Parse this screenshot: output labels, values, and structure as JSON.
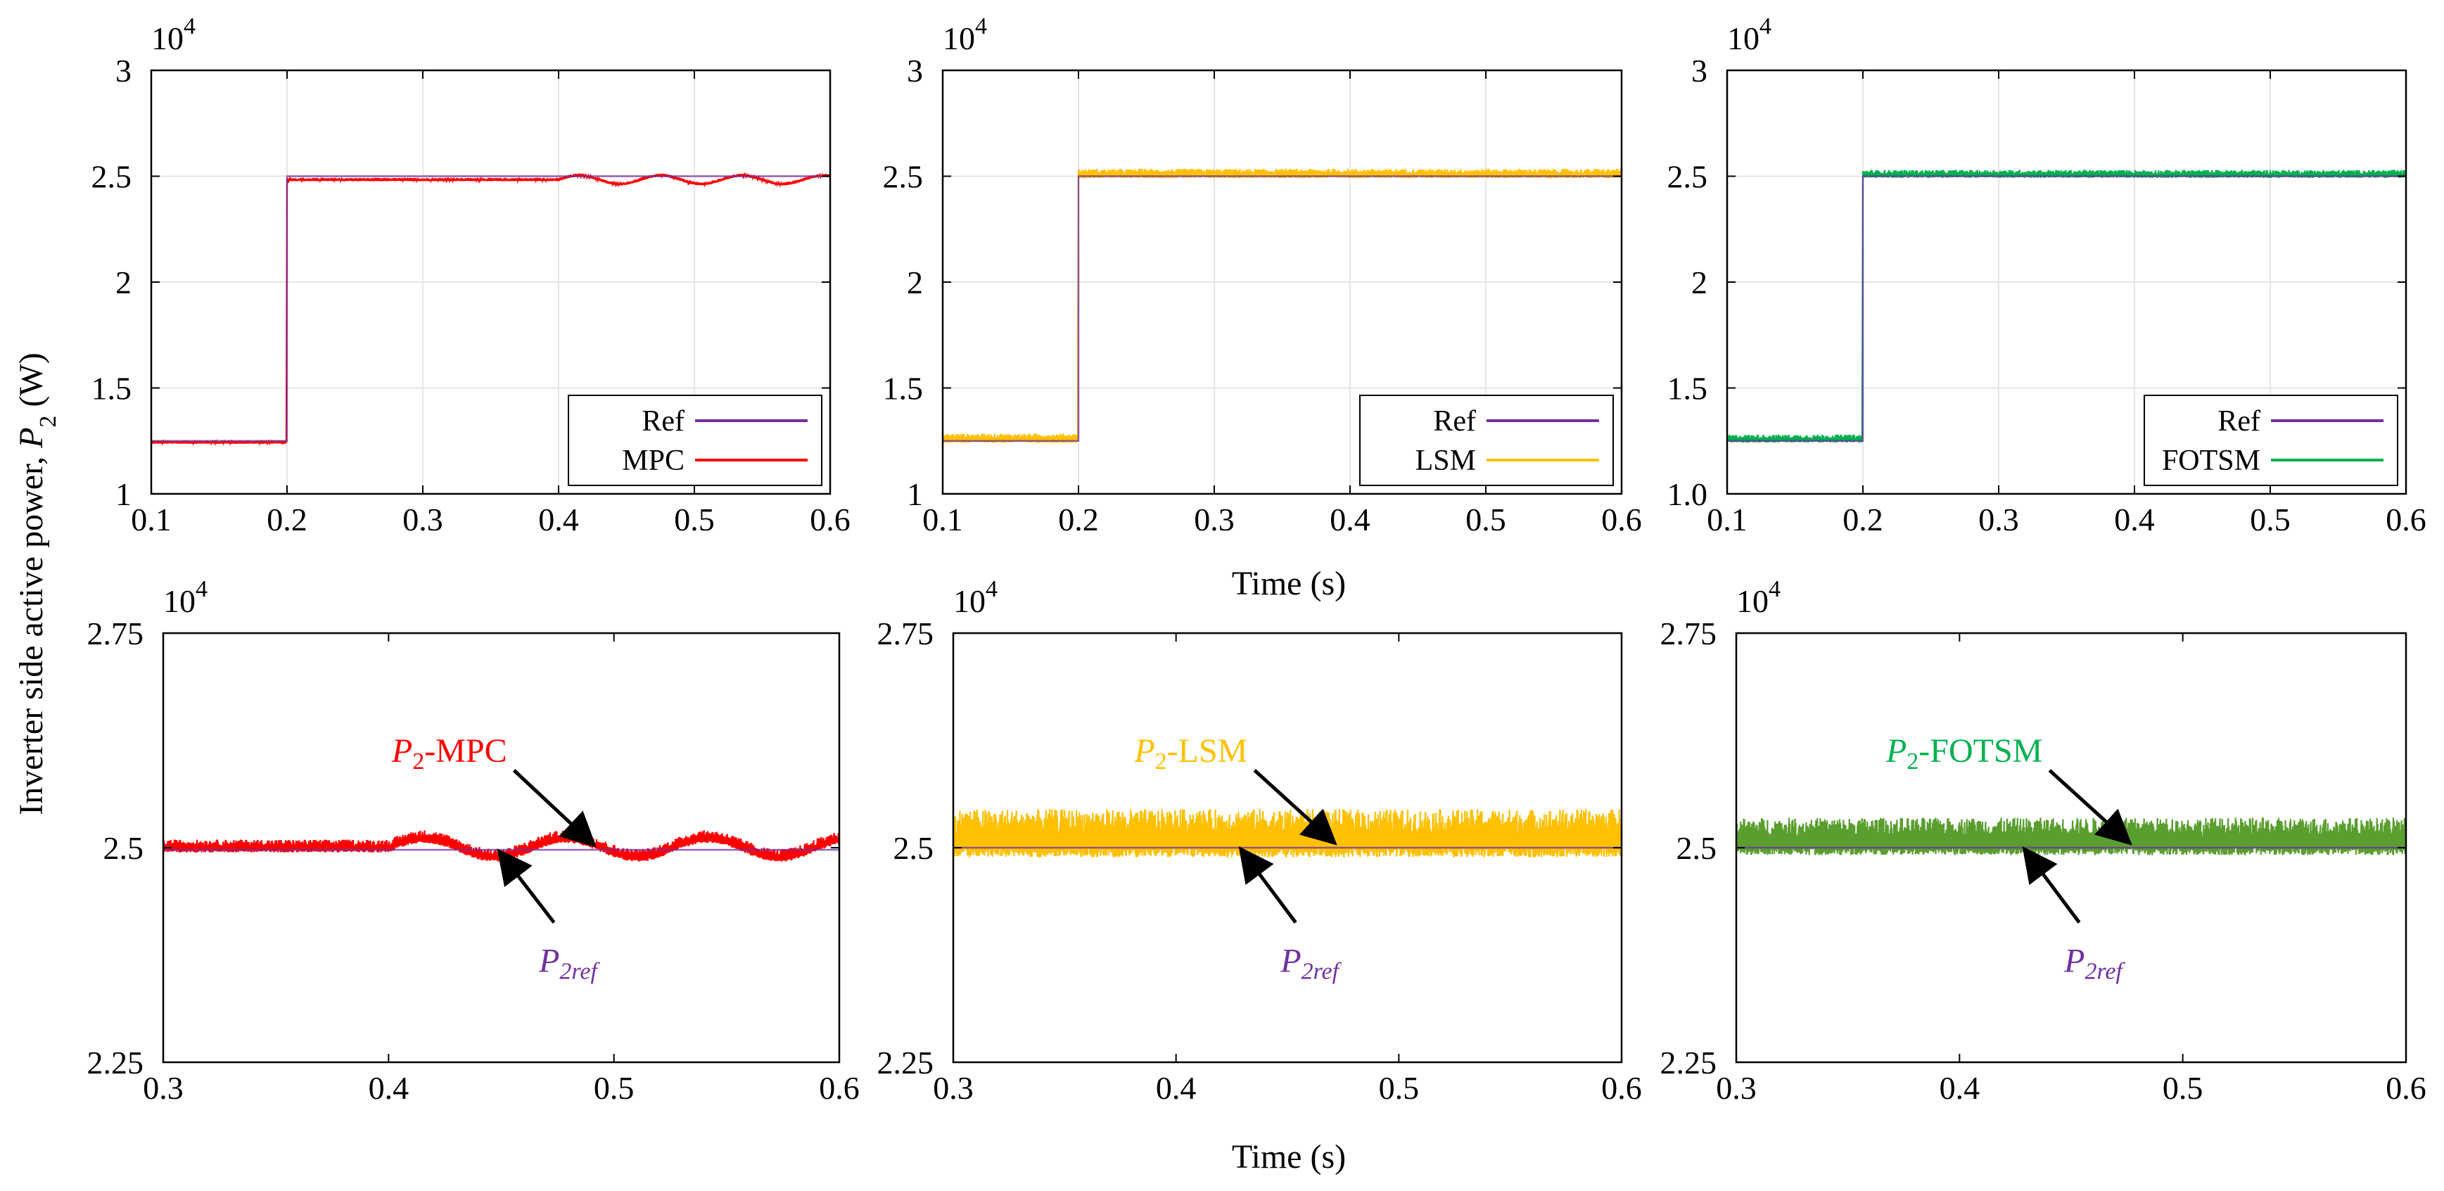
{
  "figure": {
    "ylabel_prefix": "Inverter side active power, ",
    "ylabel_var": "P",
    "ylabel_sub": "2",
    "ylabel_unit": " (W)",
    "xlabel_top": "Time (s)",
    "xlabel_bottom": "Time (s)"
  },
  "colors": {
    "ref": "#7030a0",
    "MPC": "#ff0000",
    "LSM": "#ffc000",
    "FOTSM": "#00b050",
    "FOTSM_zoom": "#5a9e2f",
    "arrow": "#000000",
    "grid": "#e6e6e6"
  },
  "chart_data": [
    {
      "type": "line",
      "title": "",
      "xlabel": "",
      "ylabel": "",
      "xlim": [
        0.1,
        0.6
      ],
      "ylim": [
        1,
        3
      ],
      "y_multiplier": "10",
      "y_exponent": "4",
      "grid": true,
      "legend_position": "bottom-right",
      "xticks": [
        "0.1",
        "0.2",
        "0.3",
        "0.4",
        "0.5",
        "0.6"
      ],
      "yticks": [
        "1",
        "1.5",
        "2",
        "2.5",
        "3"
      ],
      "series": [
        {
          "name": "Ref",
          "role": "ref",
          "steps": [
            [
              0.1,
              1.25
            ],
            [
              0.2,
              2.5
            ]
          ]
        },
        {
          "name": "MPC",
          "role": "meas",
          "color_key": "MPC",
          "pre": 1.24,
          "post": 2.48,
          "ripple": 0.012,
          "osc_start": 0.4,
          "osc_amp": 0.02,
          "osc_period": 0.06
        }
      ]
    },
    {
      "type": "line",
      "title": "",
      "xlabel": "",
      "ylabel": "",
      "xlim": [
        0.1,
        0.6
      ],
      "ylim": [
        1,
        3
      ],
      "y_multiplier": "10",
      "y_exponent": "4",
      "grid": true,
      "legend_position": "bottom-right",
      "xticks": [
        "0.1",
        "0.2",
        "0.3",
        "0.4",
        "0.5",
        "0.6"
      ],
      "yticks": [
        "1",
        "1.5",
        "2",
        "2.5",
        "3"
      ],
      "series": [
        {
          "name": "Ref",
          "role": "ref",
          "steps": [
            [
              0.1,
              1.25
            ],
            [
              0.2,
              2.5
            ]
          ]
        },
        {
          "name": "LSM",
          "role": "meas",
          "color_key": "LSM",
          "pre": 1.25,
          "post": 2.5,
          "ripple": 0.035
        }
      ]
    },
    {
      "type": "line",
      "title": "",
      "xlabel": "",
      "ylabel": "",
      "xlim": [
        0.1,
        0.6
      ],
      "ylim": [
        1,
        3
      ],
      "y_multiplier": "10",
      "y_exponent": "4",
      "grid": true,
      "legend_position": "bottom-right",
      "xticks": [
        "0.1",
        "0.2",
        "0.3",
        "0.4",
        "0.5",
        "0.6"
      ],
      "yticks": [
        "1.0",
        "1.5",
        "2",
        "2.5",
        "3"
      ],
      "series": [
        {
          "name": "Ref",
          "role": "ref",
          "steps": [
            [
              0.1,
              1.25
            ],
            [
              0.2,
              2.5
            ]
          ]
        },
        {
          "name": "FOTSM",
          "role": "meas",
          "color_key": "FOTSM",
          "pre": 1.25,
          "post": 2.5,
          "ripple": 0.03
        }
      ]
    },
    {
      "type": "line",
      "title": "",
      "xlabel": "",
      "ylabel": "",
      "xlim": [
        0.3,
        0.6
      ],
      "ylim": [
        2.25,
        2.75
      ],
      "y_multiplier": "10",
      "y_exponent": "4",
      "grid": false,
      "xticks": [
        "0.3",
        "0.4",
        "0.5",
        "0.6"
      ],
      "yticks": [
        "2.25",
        "2.5",
        "2.75"
      ],
      "series": [
        {
          "name": "P2ref",
          "role": "ref",
          "value": 2.4975
        },
        {
          "name": "P2-MPC",
          "role": "meas",
          "color_key": "MPC",
          "base": 2.4975,
          "ripple": 0.012,
          "osc_start": 0.4,
          "osc_amp": 0.011,
          "osc_period": 0.063
        }
      ],
      "annotations": [
        {
          "var": "P",
          "sub": "2",
          "rest": "-MPC",
          "color_key": "MPC",
          "target": "meas",
          "ax": 0.49
        },
        {
          "var": "P",
          "sub": "2ref",
          "rest": "",
          "color_key": "ref",
          "target": "ref",
          "ax": 0.45
        }
      ]
    },
    {
      "type": "line",
      "title": "",
      "xlabel": "",
      "ylabel": "",
      "xlim": [
        0.3,
        0.6
      ],
      "ylim": [
        2.25,
        2.75
      ],
      "y_multiplier": "10",
      "y_exponent": "4",
      "grid": false,
      "xticks": [
        "0.3",
        "0.4",
        "0.5",
        "0.6"
      ],
      "yticks": [
        "2.25",
        "2.5",
        "2.75"
      ],
      "series": [
        {
          "name": "P2ref",
          "role": "ref",
          "value": 2.5
        },
        {
          "name": "P2-LSM",
          "role": "meas",
          "color_key": "LSM",
          "base": 2.5,
          "ripple": 0.045
        }
      ],
      "annotations": [
        {
          "var": "P",
          "sub": "2",
          "rest": "-LSM",
          "color_key": "LSM",
          "target": "meas",
          "ax": 0.47
        },
        {
          "var": "P",
          "sub": "2ref",
          "rest": "",
          "color_key": "ref",
          "target": "ref",
          "ax": 0.43
        }
      ]
    },
    {
      "type": "line",
      "title": "",
      "xlabel": "",
      "ylabel": "",
      "xlim": [
        0.3,
        0.6
      ],
      "ylim": [
        2.25,
        2.75
      ],
      "y_multiplier": "10",
      "y_exponent": "4",
      "grid": false,
      "xticks": [
        "0.3",
        "0.4",
        "0.5",
        "0.6"
      ],
      "yticks": [
        "2.25",
        "2.5",
        "2.75"
      ],
      "series": [
        {
          "name": "P2ref",
          "role": "ref",
          "value": 2.5
        },
        {
          "name": "P2-FOTSM",
          "role": "meas",
          "color_key": "FOTSM_zoom",
          "base": 2.5,
          "ripple": 0.035
        }
      ],
      "annotations": [
        {
          "var": "P",
          "sub": "2",
          "rest": "-FOTSM",
          "color_key": "FOTSM",
          "target": "meas",
          "ax": 0.475
        },
        {
          "var": "P",
          "sub": "2ref",
          "rest": "",
          "color_key": "ref",
          "target": "ref",
          "ax": 0.43
        }
      ]
    }
  ]
}
